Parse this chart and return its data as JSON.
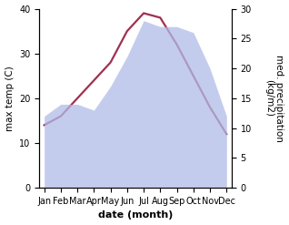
{
  "months": [
    "Jan",
    "Feb",
    "Mar",
    "Apr",
    "May",
    "Jun",
    "Jul",
    "Aug",
    "Sep",
    "Oct",
    "Nov",
    "Dec"
  ],
  "max_temp": [
    14,
    16,
    20,
    24,
    28,
    35,
    39,
    38,
    32,
    25,
    18,
    12
  ],
  "precipitation": [
    12,
    14,
    14,
    13,
    17,
    22,
    28,
    27,
    27,
    26,
    20,
    12
  ],
  "temp_color": "#a03050",
  "rain_fill_color": "#b0bce8",
  "rain_fill_alpha": 0.75,
  "ylabel_left": "max temp (C)",
  "ylabel_right": "med. precipitation\n(kg/m2)",
  "xlabel": "date (month)",
  "ylim_left": [
    0,
    40
  ],
  "ylim_right": [
    0,
    30
  ],
  "yticks_left": [
    0,
    10,
    20,
    30,
    40
  ],
  "yticks_right": [
    0,
    5,
    10,
    15,
    20,
    25,
    30
  ],
  "temp_linewidth": 1.6,
  "xlabel_fontsize": 8,
  "ylabel_fontsize": 7.5,
  "tick_fontsize": 7
}
